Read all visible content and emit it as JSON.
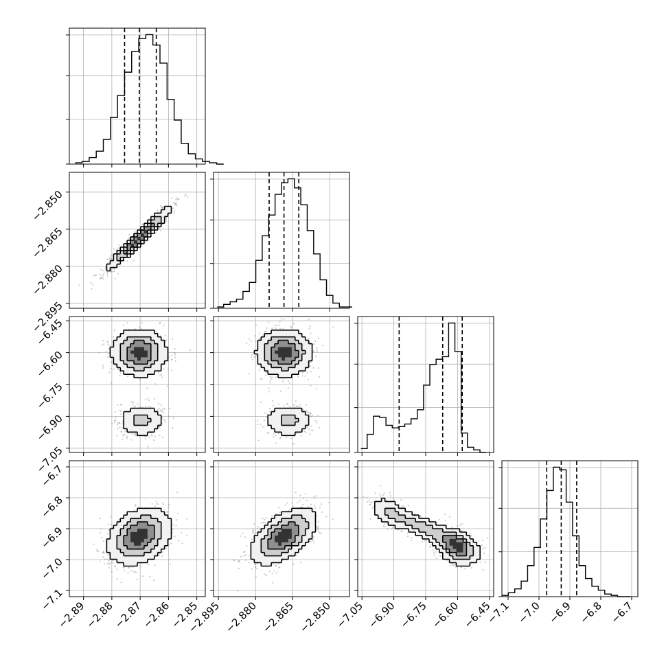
{
  "chart_data": {
    "type": "corner",
    "title": "",
    "grid": true,
    "colors": {
      "line": "#000000",
      "points": "#8c8c8c",
      "grid": "#b0b0b0",
      "background": "#ffffff"
    },
    "parameters": [
      {
        "index": 0,
        "range": [
          -2.895,
          -2.847
        ],
        "ticks": [
          -2.89,
          -2.88,
          -2.87,
          -2.86,
          -2.85
        ],
        "tick_labels": [
          "−2.89",
          "−2.88",
          "−2.87",
          "−2.86",
          "−2.85"
        ],
        "quantiles": [
          -2.8755,
          -2.8703,
          -2.8643
        ]
      },
      {
        "index": 1,
        "range": [
          -2.897,
          -2.842
        ],
        "ticks": [
          -2.895,
          -2.88,
          -2.865,
          -2.85
        ],
        "tick_labels": [
          "−2.895",
          "−2.880",
          "−2.865",
          "−2.850"
        ],
        "quantiles": [
          -2.8745,
          -2.8685,
          -2.8625
        ]
      },
      {
        "index": 2,
        "range": [
          -7.07,
          -6.43
        ],
        "ticks": [
          -7.05,
          -6.9,
          -6.75,
          -6.6,
          -6.45
        ],
        "tick_labels": [
          "−7.05",
          "−6.90",
          "−6.75",
          "−6.60",
          "−6.45"
        ],
        "quantiles": [
          -6.875,
          -6.67,
          -6.578
        ]
      },
      {
        "index": 3,
        "range": [
          -7.12,
          -6.68
        ],
        "ticks": [
          -7.1,
          -7.0,
          -6.9,
          -6.8,
          -6.7
        ],
        "tick_labels": [
          "−7.1",
          "−7.0",
          "−6.9",
          "−6.8",
          "−6.7"
        ],
        "quantiles": [
          -6.975,
          -6.928,
          -6.878
        ]
      }
    ],
    "marginal_histograms": [
      {
        "param": 0,
        "bin_start": -2.893,
        "bin_width": 0.0025,
        "counts": [
          1,
          2,
          5,
          10,
          19,
          36,
          53,
          71,
          87,
          97,
          100,
          92,
          78,
          50,
          34,
          16,
          8,
          4,
          2,
          1,
          0
        ]
      },
      {
        "param": 1,
        "bin_start": -2.8955,
        "bin_width": 0.0026,
        "counts": [
          1,
          3,
          5,
          7,
          13,
          20,
          37,
          56,
          72,
          88,
          97,
          100,
          93,
          80,
          60,
          42,
          22,
          10,
          4,
          1,
          1
        ]
      },
      {
        "param": 2,
        "bin_start": -7.055,
        "bin_width": 0.0295,
        "counts": [
          3,
          14,
          28,
          27,
          21,
          19,
          20,
          22,
          26,
          33,
          52,
          68,
          72,
          74,
          100,
          78,
          15,
          4,
          2,
          0
        ]
      },
      {
        "param": 3,
        "bin_start": -7.12,
        "bin_width": 0.0208,
        "counts": [
          1,
          3,
          6,
          12,
          24,
          38,
          60,
          82,
          100,
          98,
          73,
          47,
          24,
          14,
          8,
          5,
          2,
          1,
          0,
          0
        ]
      }
    ],
    "density_panels": [
      {
        "x_param": 0,
        "y_param": 1,
        "modes": [
          {
            "cx": -2.8703,
            "cy": -2.8685,
            "sx": 0.0055,
            "sy": 0.0062,
            "rho": 0.96,
            "w": 1.0
          }
        ]
      },
      {
        "x_param": 0,
        "y_param": 2,
        "modes": [
          {
            "cx": -2.8703,
            "cy": -6.6,
            "sx": 0.0048,
            "sy": 0.055,
            "rho": 0.0,
            "w": 1.0
          },
          {
            "cx": -2.8695,
            "cy": -6.92,
            "sx": 0.0042,
            "sy": 0.04,
            "rho": 0.0,
            "w": 0.45
          }
        ]
      },
      {
        "x_param": 1,
        "y_param": 2,
        "modes": [
          {
            "cx": -2.8685,
            "cy": -6.6,
            "sx": 0.0055,
            "sy": 0.055,
            "rho": 0.0,
            "w": 1.0
          },
          {
            "cx": -2.8665,
            "cy": -6.92,
            "sx": 0.005,
            "sy": 0.04,
            "rho": 0.0,
            "w": 0.45
          }
        ]
      },
      {
        "x_param": 0,
        "y_param": 3,
        "modes": [
          {
            "cx": -2.8703,
            "cy": -6.925,
            "sx": 0.0055,
            "sy": 0.045,
            "rho": 0.3,
            "w": 1.0
          }
        ]
      },
      {
        "x_param": 1,
        "y_param": 3,
        "modes": [
          {
            "cx": -2.8685,
            "cy": -6.925,
            "sx": 0.0065,
            "sy": 0.045,
            "rho": 0.55,
            "w": 1.0
          }
        ]
      },
      {
        "x_param": 2,
        "y_param": 3,
        "modes": [
          {
            "cx": -6.6,
            "cy": -6.96,
            "sx": 0.05,
            "sy": 0.03,
            "rho": -0.3,
            "w": 1.0
          },
          {
            "cx": -6.75,
            "cy": -6.9,
            "sx": 0.1,
            "sy": 0.035,
            "rho": -0.85,
            "w": 0.55
          },
          {
            "cx": -6.92,
            "cy": -6.85,
            "sx": 0.05,
            "sy": 0.03,
            "rho": -0.5,
            "w": 0.35
          }
        ]
      }
    ]
  }
}
